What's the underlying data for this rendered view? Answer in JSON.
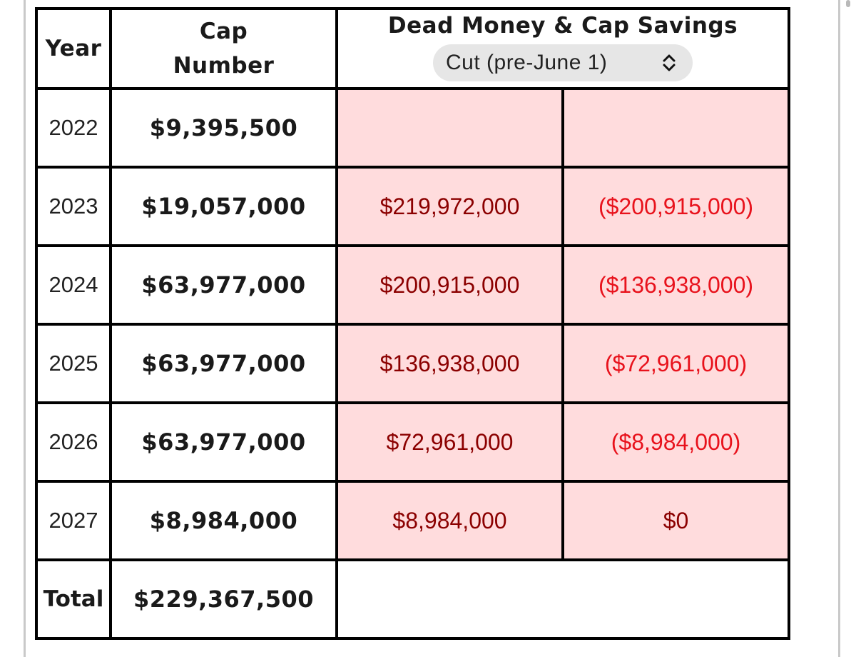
{
  "header": {
    "year": "Year",
    "cap_line1": "Cap",
    "cap_line2": "Number",
    "dead_money": "Dead Money & Cap Savings",
    "select_value": "Cut (pre-June 1)",
    "select_icon": "chevron-up-down-icon"
  },
  "rows": [
    {
      "year": "2022",
      "cap": "$9,395,500",
      "dead": "",
      "savings": ""
    },
    {
      "year": "2023",
      "cap": "$19,057,000",
      "dead": "$219,972,000",
      "savings": "($200,915,000)"
    },
    {
      "year": "2024",
      "cap": "$63,977,000",
      "dead": "$200,915,000",
      "savings": "($136,938,000)"
    },
    {
      "year": "2025",
      "cap": "$63,977,000",
      "dead": "$136,938,000",
      "savings": "($72,961,000)"
    },
    {
      "year": "2026",
      "cap": "$63,977,000",
      "dead": "$72,961,000",
      "savings": "($8,984,000)"
    },
    {
      "year": "2027",
      "cap": "$8,984,000",
      "dead": "$8,984,000",
      "savings": "$0"
    }
  ],
  "total": {
    "label": "Total",
    "cap": "$229,367,500"
  },
  "colors": {
    "dead_money_text": "#8b0000",
    "negative_savings_text": "#e8121c",
    "cell_fill": "#ffdcdd",
    "cell_border": "#8b0000"
  }
}
